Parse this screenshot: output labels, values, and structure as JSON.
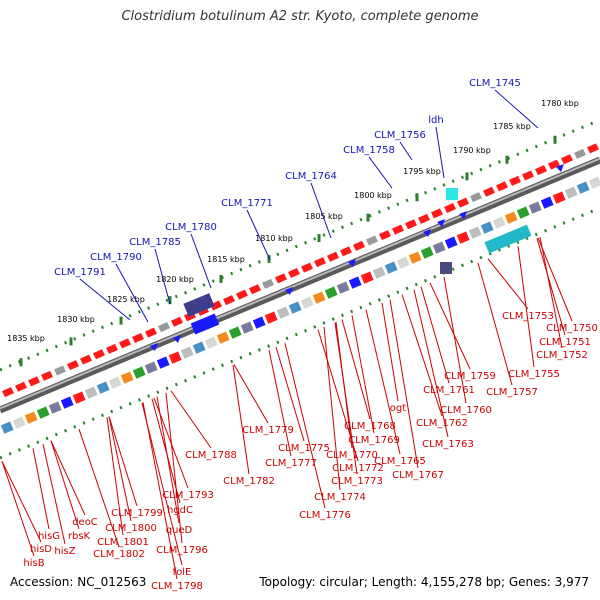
{
  "title": "Clostridium botulinum A2 str. Kyoto, complete genome",
  "accession_label": "Accession:",
  "accession": "NC_012563",
  "topology_text": "Topology: circular; Length: 4,155,278 bp; Genes: 3,977",
  "colors": {
    "backbone": "#888888",
    "ruler": "#2a7f2a",
    "label_upper": "#1414b4",
    "label_lower": "#cc0000",
    "gene_red": "#ff1a1a",
    "gene_blue": "#1a1aff"
  },
  "ruler_ticks": [
    {
      "label": "1780 kbp"
    },
    {
      "label": "1785 kbp"
    },
    {
      "label": "1790 kbp"
    },
    {
      "label": "1795 kbp"
    },
    {
      "label": "1800 kbp"
    },
    {
      "label": "1805 kbp"
    },
    {
      "label": "1810 kbp"
    },
    {
      "label": "1815 kbp"
    },
    {
      "label": "1820 kbp"
    },
    {
      "label": "1825 kbp"
    },
    {
      "label": "1830 kbp"
    },
    {
      "label": "1835 kbp"
    }
  ],
  "upper_labels": [
    {
      "text": "CLM_1745"
    },
    {
      "text": "ldh"
    },
    {
      "text": "CLM_1756"
    },
    {
      "text": "CLM_1758"
    },
    {
      "text": "CLM_1764"
    },
    {
      "text": "CLM_1771"
    },
    {
      "text": "CLM_1780"
    },
    {
      "text": "CLM_1785"
    },
    {
      "text": "CLM_1790"
    },
    {
      "text": "CLM_1791"
    }
  ],
  "lower_labels": [
    {
      "text": "CLM_1753"
    },
    {
      "text": "CLM_1750"
    },
    {
      "text": "CLM_1751"
    },
    {
      "text": "CLM_1752"
    },
    {
      "text": "CLM_1755"
    },
    {
      "text": "CLM_1759"
    },
    {
      "text": "CLM_1757"
    },
    {
      "text": "CLM_1761"
    },
    {
      "text": "CLM_1760"
    },
    {
      "text": "ogt"
    },
    {
      "text": "CLM_1762"
    },
    {
      "text": "CLM_1763"
    },
    {
      "text": "CLM_1768"
    },
    {
      "text": "CLM_1769"
    },
    {
      "text": "CLM_1770"
    },
    {
      "text": "CLM_1772"
    },
    {
      "text": "CLM_1765"
    },
    {
      "text": "CLM_1767"
    },
    {
      "text": "CLM_1773"
    },
    {
      "text": "CLM_1774"
    },
    {
      "text": "CLM_1776"
    },
    {
      "text": "CLM_1779"
    },
    {
      "text": "CLM_1775"
    },
    {
      "text": "CLM_1777"
    },
    {
      "text": "CLM_1782"
    },
    {
      "text": "CLM_1788"
    },
    {
      "text": "CLM_1793"
    },
    {
      "text": "hgdC"
    },
    {
      "text": "queD"
    },
    {
      "text": "CLM_1796"
    },
    {
      "text": "folE"
    },
    {
      "text": "CLM_1798"
    },
    {
      "text": "CLM_1799"
    },
    {
      "text": "CLM_1800"
    },
    {
      "text": "CLM_1801"
    },
    {
      "text": "CLM_1802"
    },
    {
      "text": "deoC"
    },
    {
      "text": "rbsK"
    },
    {
      "text": "hisZ"
    },
    {
      "text": "hisG"
    },
    {
      "text": "hisD"
    },
    {
      "text": "hisB"
    }
  ]
}
